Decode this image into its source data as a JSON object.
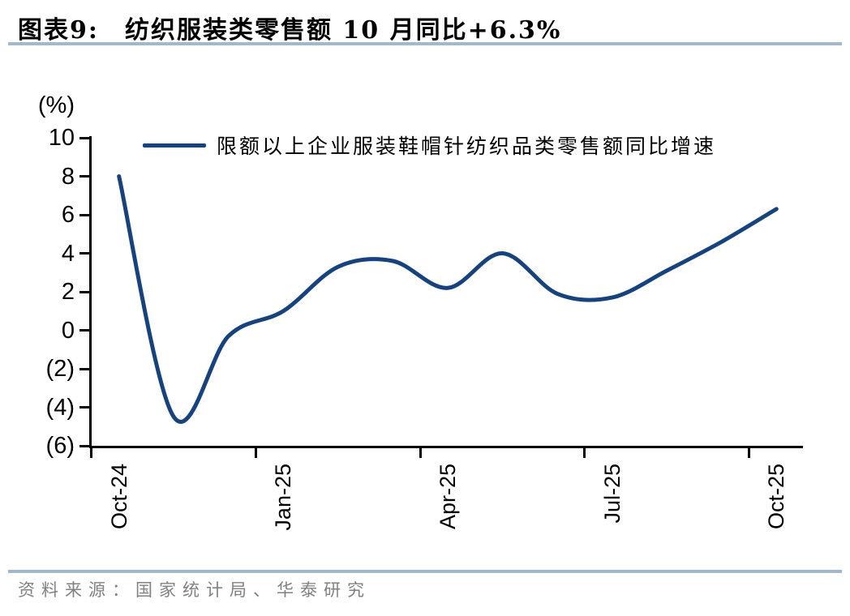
{
  "header": {
    "title_prefix": "图表9:",
    "title": "纺织服装类零售额 10 月同比+6.3%"
  },
  "legend": {
    "series_label": "限额以上企业服装鞋帽针纺织品类零售额同比增速"
  },
  "axes": {
    "y_unit": "(%)",
    "y_tick_labels": [
      "10",
      "8",
      "6",
      "4",
      "2",
      "0",
      "(2)",
      "(4)",
      "(6)"
    ],
    "y_tick_values": [
      10,
      8,
      6,
      4,
      2,
      0,
      -2,
      -4,
      -6
    ],
    "x_tick_labels": [
      "Oct-24",
      "Jan-25",
      "Apr-25",
      "Jul-25",
      "Oct-25"
    ]
  },
  "footer": {
    "source": "资料来源：国家统计局、华泰研究"
  },
  "colors": {
    "line": "#16427e",
    "accent_rule": "#a3b8cd",
    "source_text": "#818181",
    "axis": "#000000"
  },
  "chart_data": {
    "type": "line",
    "title": "图表9: 纺织服装类零售额 10 月同比+6.3%",
    "x": [
      "Oct-24",
      "Nov-24",
      "Dec-24",
      "Jan-25",
      "Feb-25",
      "Mar-25",
      "Apr-25",
      "May-25",
      "Jun-25",
      "Jul-25",
      "Aug-25",
      "Sep-25",
      "Oct-25"
    ],
    "series": [
      {
        "name": "限额以上企业服装鞋帽针纺织品类零售额同比增速",
        "values": [
          8.0,
          -4.5,
          -0.3,
          1.0,
          3.3,
          3.6,
          2.2,
          4.0,
          1.9,
          1.7,
          3.1,
          4.6,
          6.3
        ]
      }
    ],
    "ylabel": "(%)",
    "ylim": [
      -6,
      10
    ],
    "y_tick_step": 2,
    "negative_label_format": "parentheses",
    "x_axis_labeled_ticks_every": 3,
    "grid": false,
    "line_smoothing": true,
    "legend_position": "top-inside"
  }
}
